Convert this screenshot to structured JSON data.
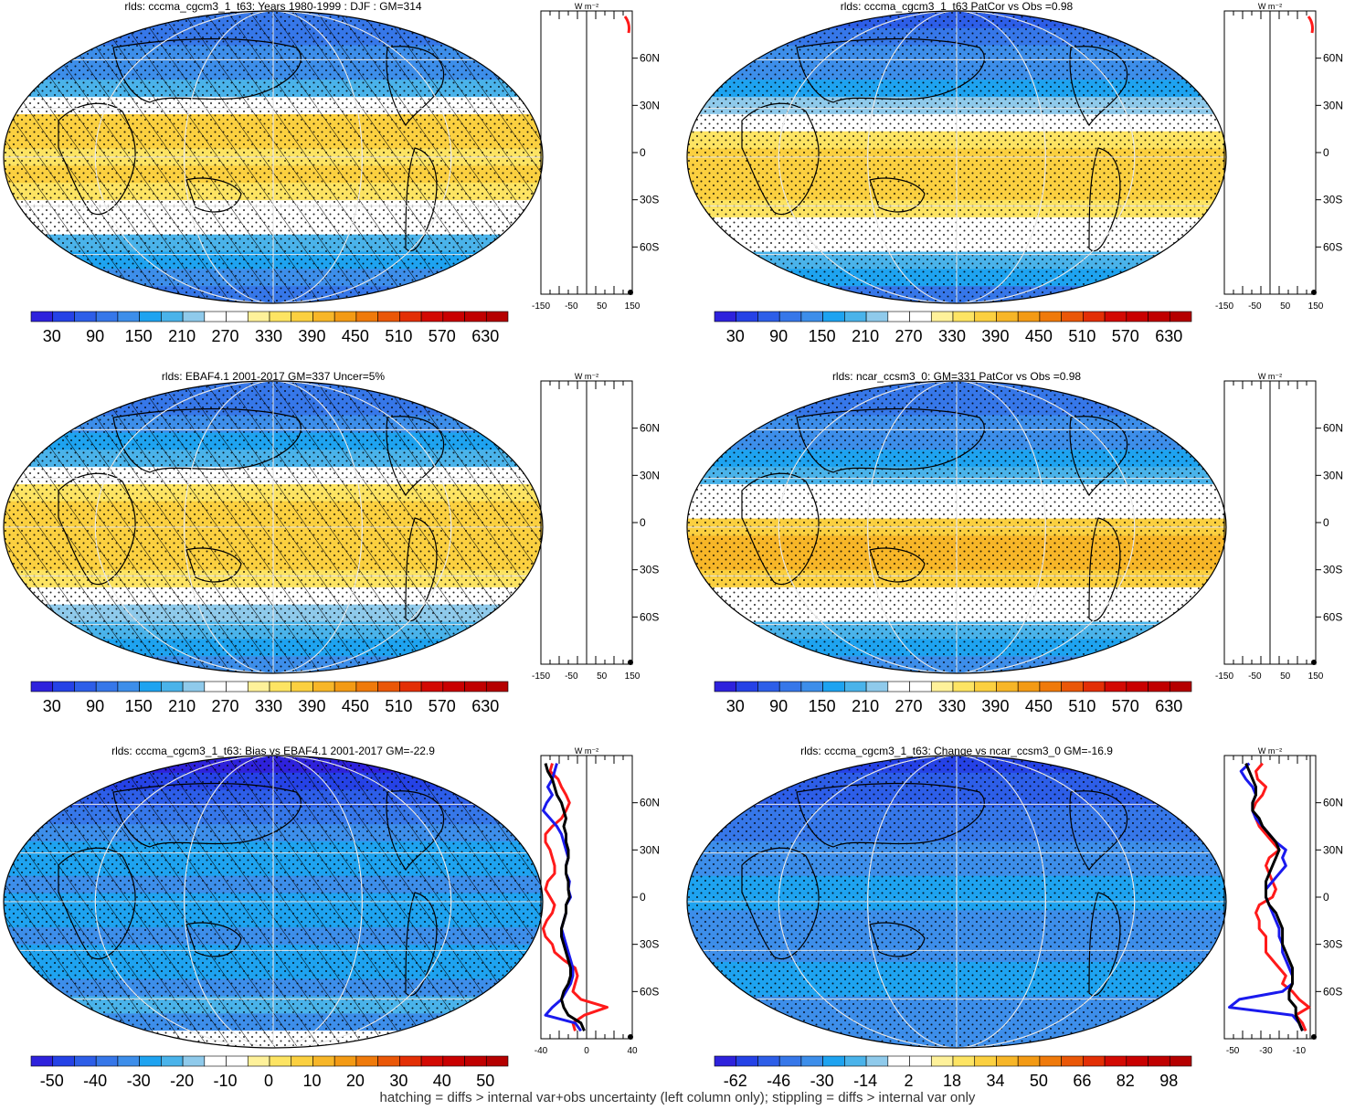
{
  "figure": {
    "footer": "hatching = diffs > internal var+obs uncertainty (left column only); stippling = diffs > internal var only"
  },
  "colors": {
    "scale": [
      "#2e22dc",
      "#2542e6",
      "#2d5ee8",
      "#3677e9",
      "#3d8eea",
      "#1ea3f0",
      "#4ab3ea",
      "#8fcaeb",
      "#ffffff",
      "#ffffff",
      "#fef19a",
      "#fde463",
      "#fbd040",
      "#f7b628",
      "#f39a14",
      "#ef7a0b",
      "#ea5707",
      "#e32f05",
      "#d30a03"
    ],
    "land_outline": "#000000",
    "grid": "#e8e8e8",
    "profile_red": "#ff1a1a",
    "profile_blue": "#1a1aee",
    "profile_black": "#000000"
  },
  "chart_data": [
    {
      "type": "heatmap",
      "title": "rlds: cccma_cgcm3_1_t63: Years 1980-1999 : DJF : GM=314",
      "colorbar_labels": [
        "30",
        "90",
        "150",
        "210",
        "270",
        "330",
        "390",
        "450",
        "510",
        "570",
        "630"
      ],
      "zonal_profile": {
        "unit": "W m⁻²",
        "xticks": [
          "-150",
          "-50",
          "50",
          "150"
        ],
        "lat_ticks": [
          "60N",
          "30N",
          "0",
          "30S",
          "60S"
        ],
        "series": [
          {
            "name": "",
            "values_lat": [
              85,
              80,
              75
            ],
            "values": [
              150,
              140,
              145
            ]
          }
        ]
      },
      "hatching": true,
      "stippling": true
    },
    {
      "type": "heatmap",
      "title": "rlds: cccma_cgcm3_1_t63 PatCor vs Obs =0.98",
      "colorbar_labels": [
        "30",
        "90",
        "150",
        "210",
        "270",
        "330",
        "390",
        "450",
        "510",
        "570",
        "630"
      ],
      "zonal_profile": {
        "unit": "W m⁻²",
        "xticks": [
          "-150",
          "-50",
          "50",
          "150"
        ],
        "lat_ticks": [
          "60N",
          "30N",
          "0",
          "30S",
          "60S"
        ]
      },
      "hatching": false,
      "stippling": true
    },
    {
      "type": "heatmap",
      "title": "rlds: EBAF4.1 2001-2017 GM=337 Uncer=5%",
      "colorbar_labels": [
        "30",
        "90",
        "150",
        "210",
        "270",
        "330",
        "390",
        "450",
        "510",
        "570",
        "630"
      ],
      "zonal_profile": {
        "unit": "W m⁻²",
        "xticks": [
          "-150",
          "-50",
          "50",
          "150"
        ],
        "lat_ticks": [
          "60N",
          "30N",
          "0",
          "30S",
          "60S"
        ]
      },
      "hatching": true,
      "stippling": true
    },
    {
      "type": "heatmap",
      "title": "rlds: ncar_ccsm3_0: GM=331 PatCor vs Obs =0.98",
      "colorbar_labels": [
        "30",
        "90",
        "150",
        "210",
        "270",
        "330",
        "390",
        "450",
        "510",
        "570",
        "630"
      ],
      "zonal_profile": {
        "unit": "W m⁻²",
        "xticks": [
          "-150",
          "-50",
          "50",
          "150"
        ],
        "lat_ticks": [
          "60N",
          "30N",
          "0",
          "30S",
          "60S"
        ]
      },
      "hatching": false,
      "stippling": true
    },
    {
      "type": "heatmap",
      "title": "rlds: cccma_cgcm3_1_t63: Bias vs EBAF4.1 2001-2017 GM=-22.9",
      "colorbar_labels": [
        "-50",
        "-40",
        "-30",
        "-20",
        "-10",
        "0",
        "10",
        "20",
        "30",
        "40",
        "50"
      ],
      "zonal_profile": {
        "unit": "W m⁻²",
        "xticks": [
          "-40",
          "0",
          "40"
        ],
        "xlim": [
          -40,
          40
        ],
        "lat_ticks": [
          "60N",
          "30N",
          "0",
          "30S",
          "60S"
        ],
        "lat": [
          85,
          80,
          75,
          70,
          65,
          60,
          55,
          50,
          45,
          40,
          35,
          30,
          25,
          20,
          15,
          10,
          5,
          0,
          -5,
          -10,
          -15,
          -20,
          -25,
          -30,
          -35,
          -40,
          -45,
          -50,
          -55,
          -60,
          -65,
          -70,
          -75,
          -80,
          -85
        ],
        "series": [
          {
            "name": "",
            "color": "red",
            "values": [
              -30,
              -32,
              -25,
              -22,
              -18,
              -15,
              -18,
              -22,
              -30,
              -36,
              -36,
              -32,
              -30,
              -28,
              -28,
              -34,
              -36,
              -32,
              -28,
              -30,
              -35,
              -38,
              -36,
              -30,
              -28,
              -20,
              -10,
              -8,
              -10,
              -12,
              -5,
              18,
              -2,
              -12,
              -10
            ]
          },
          {
            "name": "",
            "color": "blue",
            "values": [
              -26,
              -28,
              -30,
              -34,
              -30,
              -35,
              -38,
              -32,
              -26,
              -22,
              -20,
              -18,
              -16,
              -18,
              -18,
              -15,
              -16,
              -14,
              -18,
              -18,
              -20,
              -22,
              -20,
              -18,
              -16,
              -14,
              -12,
              -12,
              -14,
              -18,
              -22,
              -30,
              -36,
              -10,
              -5
            ]
          },
          {
            "name": "",
            "color": "black",
            "values": [
              -36,
              -34,
              -30,
              -28,
              -26,
              -22,
              -20,
              -18,
              -20,
              -18,
              -18,
              -16,
              -16,
              -18,
              -18,
              -16,
              -16,
              -15,
              -18,
              -18,
              -20,
              -22,
              -22,
              -20,
              -18,
              -16,
              -14,
              -14,
              -16,
              -20,
              -22,
              -20,
              -16,
              -5,
              -2
            ]
          }
        ]
      },
      "hatching": true,
      "stippling": true
    },
    {
      "type": "heatmap",
      "title": "rlds: cccma_cgcm3_1_t63: Change vs ncar_ccsm3_0 GM=-16.9",
      "colorbar_labels": [
        "-62",
        "-46",
        "-30",
        "-14",
        "2",
        "18",
        "34",
        "50",
        "66",
        "82",
        "98"
      ],
      "zonal_profile": {
        "unit": "W m⁻²",
        "xticks": [
          "-50",
          "-30",
          "-10"
        ],
        "xlim": [
          -55,
          0
        ],
        "lat_ticks": [
          "60N",
          "30N",
          "0",
          "30S",
          "60S"
        ],
        "lat": [
          85,
          80,
          75,
          70,
          65,
          60,
          55,
          50,
          45,
          40,
          35,
          30,
          25,
          20,
          15,
          10,
          5,
          0,
          -5,
          -10,
          -15,
          -20,
          -25,
          -30,
          -35,
          -40,
          -45,
          -50,
          -55,
          -60,
          -65,
          -70,
          -75,
          -80,
          -85
        ],
        "series": [
          {
            "name": "",
            "color": "red",
            "values": [
              -32,
              -36,
              -35,
              -30,
              -32,
              -36,
              -38,
              -36,
              -34,
              -30,
              -26,
              -22,
              -28,
              -30,
              -28,
              -26,
              -24,
              -26,
              -34,
              -36,
              -34,
              -34,
              -30,
              -30,
              -30,
              -26,
              -22,
              -18,
              -20,
              -14,
              -10,
              -4,
              -12,
              -8,
              -6
            ]
          },
          {
            "name": "",
            "color": "blue",
            "values": [
              -40,
              -45,
              -42,
              -38,
              -36,
              -38,
              -38,
              -36,
              -32,
              -28,
              -24,
              -18,
              -20,
              -18,
              -22,
              -26,
              -30,
              -30,
              -28,
              -26,
              -24,
              -22,
              -22,
              -20,
              -20,
              -18,
              -16,
              -14,
              -14,
              -20,
              -46,
              -52,
              -14,
              -10,
              -8
            ]
          },
          {
            "name": "",
            "color": "black",
            "values": [
              -42,
              -40,
              -38,
              -36,
              -36,
              -38,
              -38,
              -34,
              -32,
              -28,
              -24,
              -22,
              -24,
              -26,
              -28,
              -30,
              -30,
              -30,
              -28,
              -24,
              -22,
              -20,
              -20,
              -20,
              -18,
              -16,
              -14,
              -14,
              -14,
              -16,
              -16,
              -12,
              -12,
              -10,
              -8
            ]
          }
        ]
      },
      "hatching": false,
      "stippling": true
    }
  ]
}
